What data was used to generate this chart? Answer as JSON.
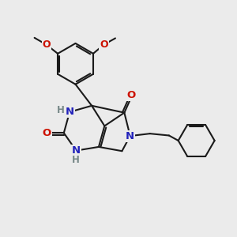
{
  "background_color": "#ebebeb",
  "bond_color": "#1a1a1a",
  "bond_width": 1.5,
  "atom_colors": {
    "N": "#2222bb",
    "O": "#cc1100",
    "H": "#778888",
    "C": "#1a1a1a"
  },
  "fig_width": 3.0,
  "fig_height": 3.0,
  "dpi": 100,
  "xlim": [
    0,
    10
  ],
  "ylim": [
    0,
    10
  ]
}
